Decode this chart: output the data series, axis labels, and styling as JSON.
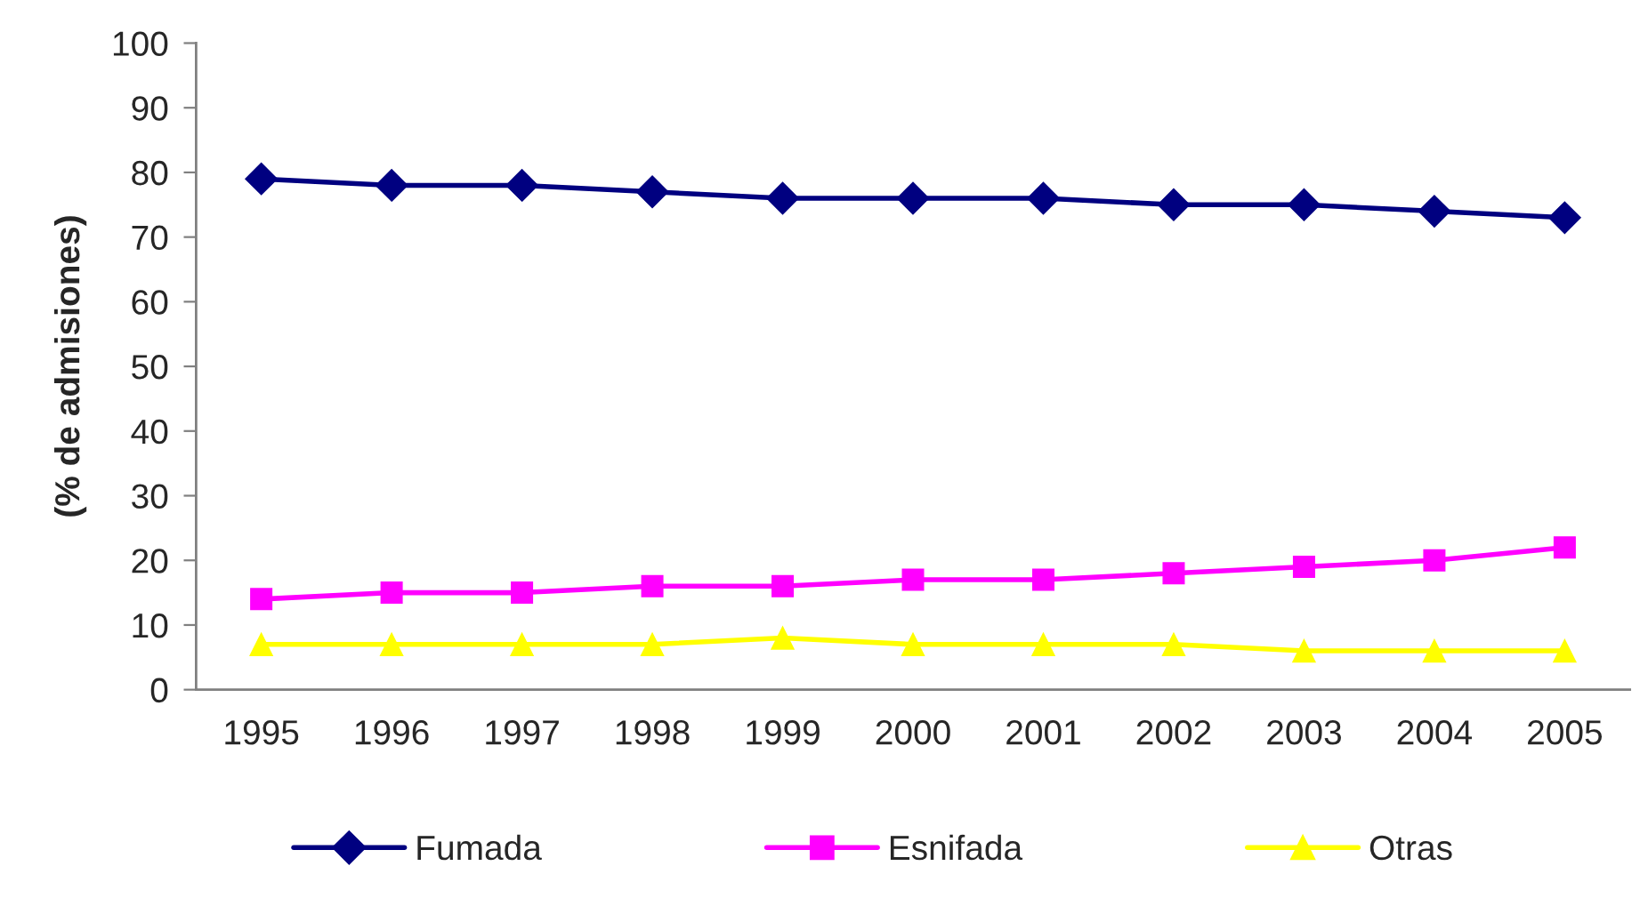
{
  "chart_data": {
    "type": "line",
    "ylabel": "(% de admisiones)",
    "categories": [
      "1995",
      "1996",
      "1997",
      "1998",
      "1999",
      "2000",
      "2001",
      "2002",
      "2003",
      "2004",
      "2005"
    ],
    "series": [
      {
        "name": "Fumada",
        "color": "#000080",
        "marker": "diamond",
        "values": [
          79,
          78,
          78,
          77,
          76,
          76,
          76,
          75,
          75,
          74,
          73
        ]
      },
      {
        "name": "Esnifada",
        "color": "#ff00ff",
        "marker": "square",
        "values": [
          14,
          15,
          15,
          16,
          16,
          17,
          17,
          18,
          19,
          20,
          22
        ]
      },
      {
        "name": "Otras",
        "color": "#ffff00",
        "marker": "triangle",
        "values": [
          7,
          7,
          7,
          7,
          8,
          7,
          7,
          7,
          6,
          6,
          6
        ]
      }
    ],
    "ylim": [
      0,
      100
    ],
    "yticks": [
      0,
      10,
      20,
      30,
      40,
      50,
      60,
      70,
      80,
      90,
      100
    ],
    "legend": "bottom"
  }
}
